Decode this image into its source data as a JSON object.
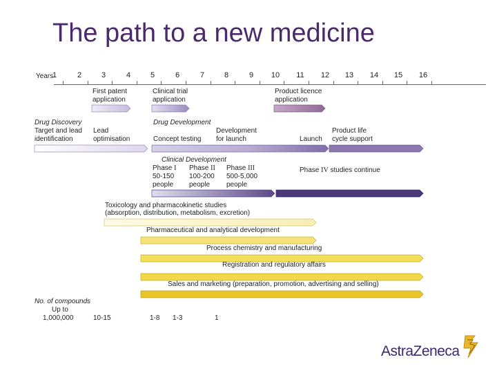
{
  "title": "The path to a new medicine",
  "years_label": "Years",
  "years": [
    "1",
    "2",
    "3",
    "4",
    "5",
    "6",
    "7",
    "8",
    "9",
    "10",
    "11",
    "12",
    "13",
    "14",
    "15",
    "16"
  ],
  "milestones": {
    "first_patent_line1": "First patent",
    "first_patent_line2": "application",
    "clinical_trial_line1": "Clinical trial",
    "clinical_trial_line2": "application",
    "product_licence_line1": "Product licence",
    "product_licence_line2": "application"
  },
  "discovery": {
    "line1": "Drug Discovery",
    "line2a": "Target and lead",
    "line3a": "identification",
    "line2b": "Lead",
    "line3b": "optimisation"
  },
  "development": {
    "header": "Drug Development",
    "concept": "Concept testing",
    "dev_line1": "Development",
    "dev_line2": "for launch",
    "launch": "Launch",
    "life_line1": "Product life",
    "life_line2": "cycle support"
  },
  "clinical": {
    "header": "Clinical Development",
    "p1_word": "Phase",
    "p1_num": "I",
    "p1_people": "50-150",
    "p2_word": "Phase",
    "p2_num": "II",
    "p2_people": "100-200",
    "p3_word": "Phase",
    "p3_num": "III",
    "p3_people": "500-5,000",
    "people_word": "people",
    "p4_word": "Phase",
    "p4_num": "IV",
    "p4_rest": "studies continue"
  },
  "bands": {
    "tox_line1": "Toxicology and pharmacokinetic studies",
    "tox_line2": "(absorption, distribution, metabolism, excretion)",
    "pharma": "Pharmaceutical and analytical development",
    "process": "Process chemistry and manufacturing",
    "registration": "Registration and regulatory affairs",
    "sales": "Sales and marketing (preparation, promotion, advertising and selling)"
  },
  "compounds": {
    "label_line1": "No. of compounds",
    "label_line2": "Up to",
    "label_line3": "1,000,000",
    "v2": "10-15",
    "v3": "1-8",
    "v4": "1-3",
    "v5": "1"
  },
  "logo": {
    "text": "AstraZeneca"
  },
  "colors": {
    "title": "#4a2a6a",
    "light_lavender": "#dcd6ec",
    "mid_purple": "#8a7ab0",
    "dark_purple": "#4a3a7a",
    "mauve": "#9a7aa0",
    "yellow_light": "#fbf6d0",
    "yellow": "#f2df5a",
    "gold": "#e8c62a"
  }
}
